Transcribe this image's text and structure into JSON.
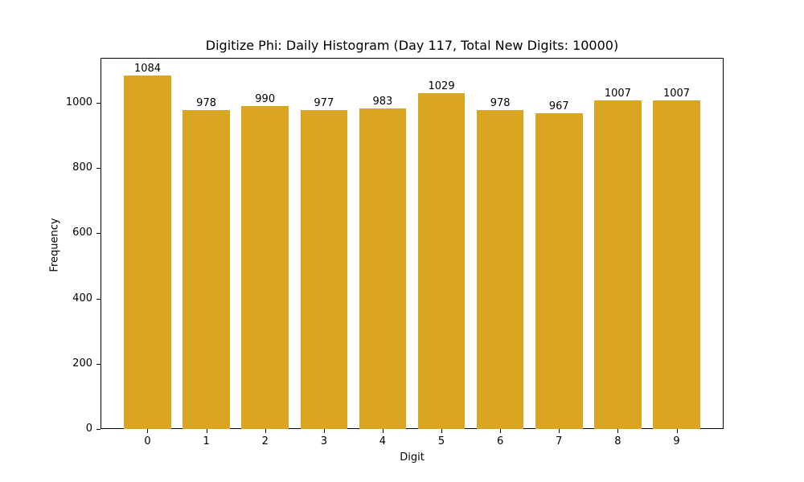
{
  "chart_data": {
    "type": "bar",
    "title": "Digitize Phi: Daily Histogram (Day 117, Total New Digits: 10000)",
    "xlabel": "Digit",
    "ylabel": "Frequency",
    "categories": [
      "0",
      "1",
      "2",
      "3",
      "4",
      "5",
      "6",
      "7",
      "8",
      "9"
    ],
    "values": [
      1084,
      978,
      990,
      977,
      983,
      1029,
      978,
      967,
      1007,
      1007
    ],
    "data_labels": [
      "1084",
      "978",
      "990",
      "977",
      "983",
      "1029",
      "978",
      "967",
      "1007",
      "1007"
    ],
    "yticks": [
      "0",
      "200",
      "400",
      "600",
      "800",
      "1000"
    ],
    "ylim": [
      0,
      1138
    ],
    "grid": false,
    "legend": null,
    "bar_color": "#DAA520"
  }
}
